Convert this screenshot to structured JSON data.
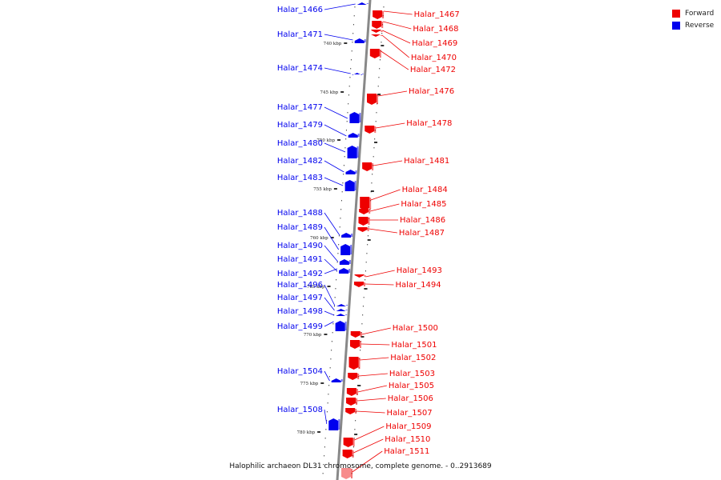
{
  "colors": {
    "forward": "#ee0000",
    "reverse": "#0000ee",
    "axis": "#888888"
  },
  "legend": [
    {
      "label": "Forward",
      "color": "#ee0000"
    },
    {
      "label": "Reverse",
      "color": "#0000ee"
    }
  ],
  "caption": "Halophilic archaeon DL31 chromosome, complete genome. - 0..2913689",
  "ticks": [
    "740 kbp",
    "745 kbp",
    "750 kbp",
    "755 kbp",
    "760 kbp",
    "765 kbp",
    "770 kbp",
    "775 kbp",
    "780 kbp"
  ],
  "reverse_genes": [
    "Halar_1466",
    "Halar_1471",
    "Halar_1474",
    "Halar_1477",
    "Halar_1479",
    "Halar_1480",
    "Halar_1482",
    "Halar_1483",
    "Halar_1488",
    "Halar_1489",
    "Halar_1490",
    "Halar_1491",
    "Halar_1492",
    "Halar_1496",
    "Halar_1497",
    "Halar_1498",
    "Halar_1499",
    "Halar_1504",
    "Halar_1508"
  ],
  "forward_genes": [
    "Halar_1467",
    "Halar_1468",
    "Halar_1469",
    "Halar_1470",
    "Halar_1472",
    "Halar_1476",
    "Halar_1478",
    "Halar_1481",
    "Halar_1484",
    "Halar_1485",
    "Halar_1486",
    "Halar_1487",
    "Halar_1493",
    "Halar_1494",
    "Halar_1500",
    "Halar_1501",
    "Halar_1502",
    "Halar_1503",
    "Halar_1505",
    "Halar_1506",
    "Halar_1507",
    "Halar_1509",
    "Halar_1510",
    "Halar_1511"
  ]
}
